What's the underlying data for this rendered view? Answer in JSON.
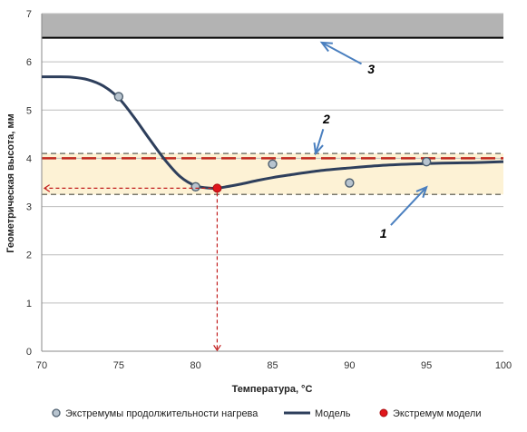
{
  "chart_data": {
    "type": "line",
    "xlabel": "Температура, °C",
    "ylabel": "Геометрическая высота, мм",
    "xlim": [
      70,
      100
    ],
    "ylim": [
      0,
      7
    ],
    "x_ticks": [
      70,
      75,
      80,
      85,
      90,
      95,
      100
    ],
    "y_ticks": [
      0,
      1,
      2,
      3,
      4,
      5,
      6,
      7
    ],
    "grid": "horizontal",
    "legend_position": "bottom",
    "series": [
      {
        "name": "Экстремумы продолжительности нагрева",
        "kind": "scatter",
        "color": "#7f8c99",
        "x": [
          75,
          80,
          85,
          90,
          95
        ],
        "y": [
          5.28,
          3.41,
          3.88,
          3.49,
          3.93
        ]
      },
      {
        "name": "Модель",
        "kind": "line",
        "color": "#2e3f5c",
        "x": [
          70,
          71,
          72,
          73,
          74,
          75,
          76,
          77,
          78,
          79,
          80,
          81,
          81.4,
          82,
          83,
          84,
          85,
          86,
          88,
          90,
          92,
          94,
          96,
          98,
          100
        ],
        "y": [
          5.69,
          5.69,
          5.68,
          5.63,
          5.5,
          5.25,
          4.85,
          4.4,
          3.97,
          3.62,
          3.43,
          3.38,
          3.38,
          3.41,
          3.47,
          3.54,
          3.6,
          3.65,
          3.74,
          3.8,
          3.85,
          3.88,
          3.9,
          3.91,
          3.93
        ]
      },
      {
        "name": "Экстремум модели",
        "kind": "scatter",
        "color": "#e0161b",
        "x": [
          81.4
        ],
        "y": [
          3.38
        ]
      }
    ],
    "reference_lines": {
      "red_dashed": 4.0,
      "grey_dashed_upper": 4.1,
      "grey_dashed_lower": 3.25,
      "black_solid": 6.5
    },
    "bands": [
      {
        "from": 3.25,
        "to": 4.1,
        "color": "#fdf2d5"
      },
      {
        "from": 6.5,
        "to": 7.0,
        "color": "#b3b3b3"
      }
    ],
    "annotations": [
      {
        "label": "1",
        "x": 92.2,
        "y": 2.45,
        "points_to": [
          95,
          3.4
        ]
      },
      {
        "label": "2",
        "x": 88.5,
        "y": 4.82,
        "points_to": [
          87.8,
          4.1
        ]
      },
      {
        "label": "3",
        "x": 91.4,
        "y": 5.85,
        "points_to": [
          88.2,
          6.4
        ]
      }
    ],
    "projection_to": {
      "x": 81.4,
      "y": 3.38
    }
  }
}
